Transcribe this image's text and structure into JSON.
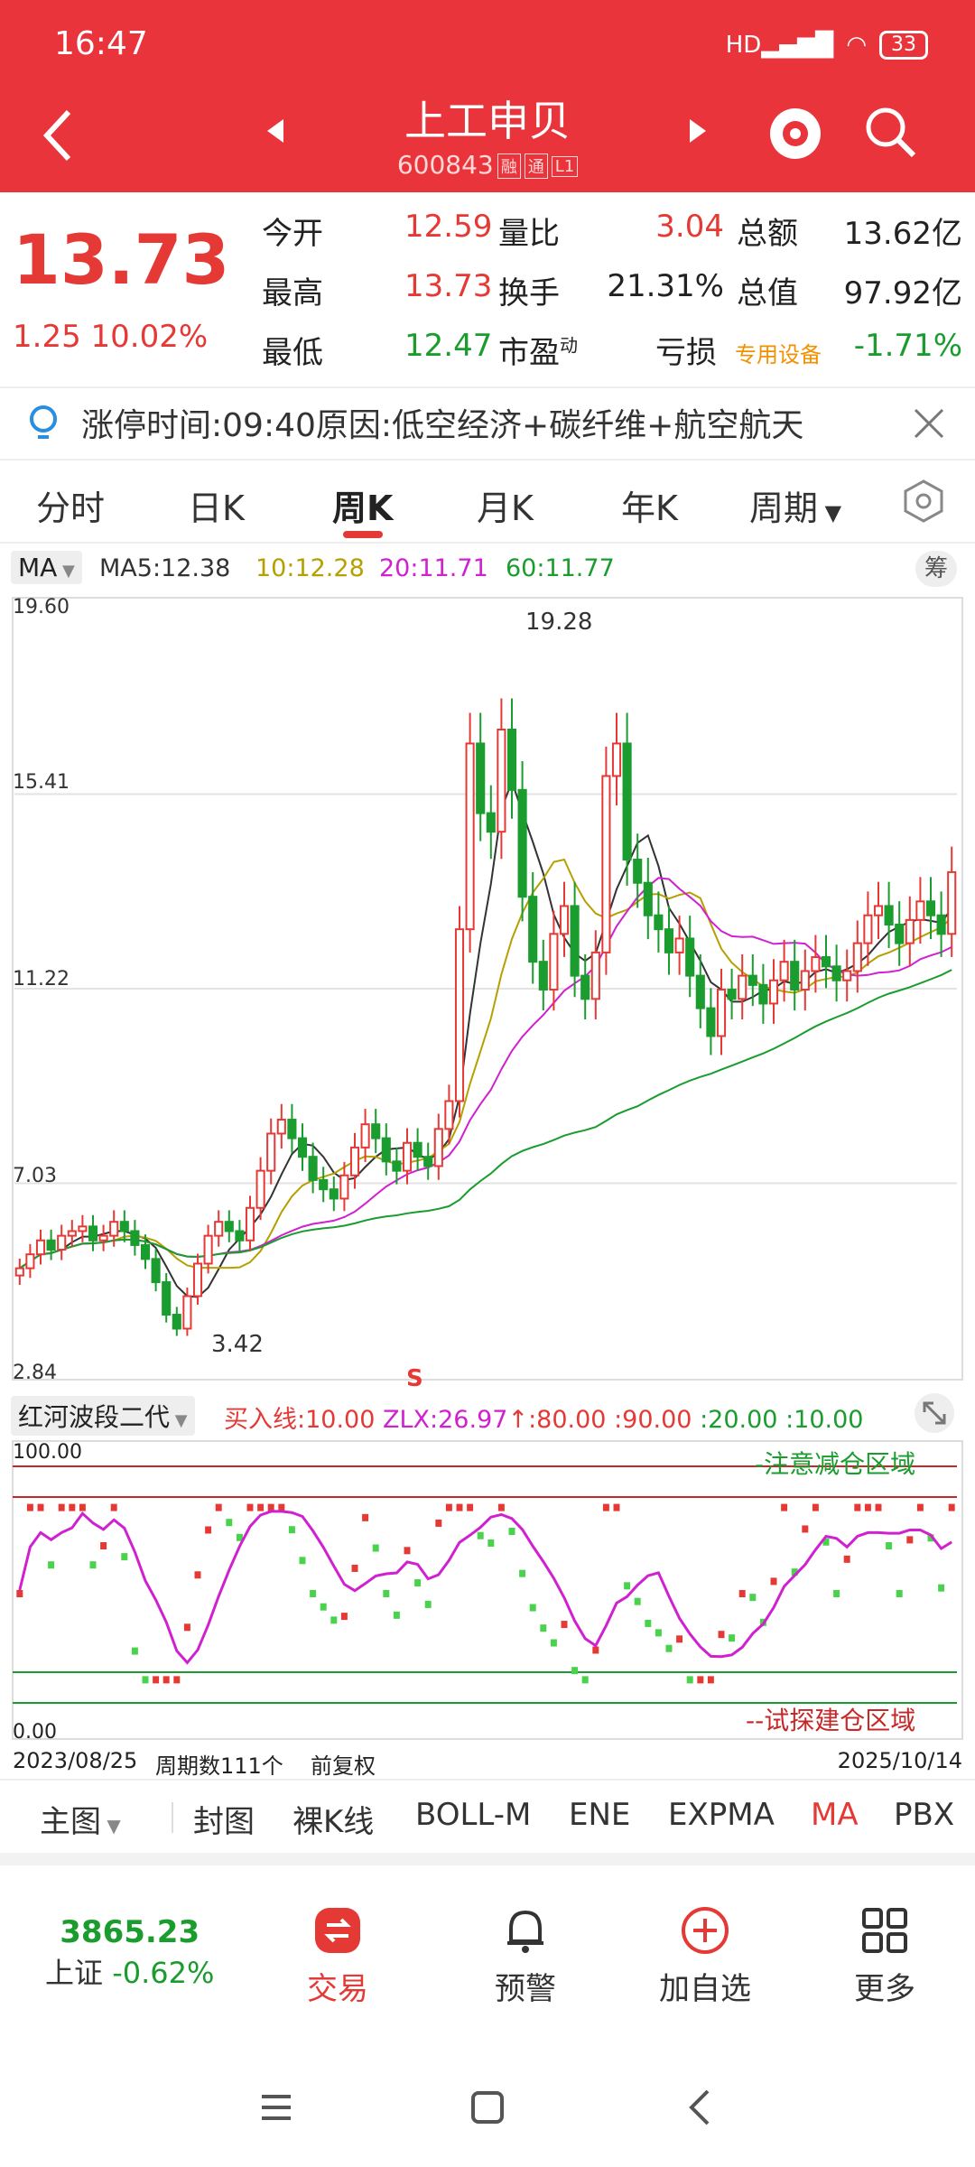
{
  "status_bar": {
    "time": "16:47",
    "battery": "33"
  },
  "header": {
    "title": "上工申贝",
    "code": "600843",
    "tags": [
      "融",
      "通",
      "L1"
    ]
  },
  "quote": {
    "price": "13.73",
    "change": "1.25",
    "change_pct": "10.02%",
    "rows": [
      [
        {
          "label": "今开",
          "value": "12.59",
          "color": "red"
        },
        {
          "label": "量比",
          "value": "3.04",
          "color": "red"
        },
        {
          "label": "总额",
          "value": "13.62亿",
          "color": "black"
        }
      ],
      [
        {
          "label": "最高",
          "value": "13.73",
          "color": "red"
        },
        {
          "label": "换手",
          "value": "21.31%",
          "color": "black"
        },
        {
          "label": "总值",
          "value": "97.92亿",
          "color": "black"
        }
      ],
      [
        {
          "label": "最低",
          "value": "12.47",
          "color": "green"
        },
        {
          "label": "市盈",
          "sup": "动",
          "value": "亏损",
          "color": "black"
        },
        {
          "label": "专用设备",
          "value": "-1.71%",
          "color": "green"
        }
      ]
    ]
  },
  "notice": {
    "text": "涨停时间:09:40原因:低空经济+碳纤维+航空航天"
  },
  "tabs": [
    "分时",
    "日K",
    "周K",
    "月K",
    "年K",
    "周期"
  ],
  "active_tab": "周K",
  "ma_legend": {
    "selector": "MA",
    "items": [
      {
        "label": "MA5:12.38",
        "color": "#333333"
      },
      {
        "label": "10:12.28",
        "color": "#b5a000"
      },
      {
        "label": "20:11.71",
        "color": "#d020d0"
      },
      {
        "label": "60:11.77",
        "color": "#1a9c2e"
      }
    ],
    "chip_btn": "筹"
  },
  "price_axis": [
    "19.60",
    "15.41",
    "11.22",
    "7.03",
    "2.84"
  ],
  "annotations": {
    "high": "19.28",
    "low": "3.42",
    "signal": "S"
  },
  "indicator": {
    "name": "红河波段二代",
    "params": [
      {
        "text": "买入线:10.00",
        "color": "#e53935"
      },
      {
        "text": "ZLX:26.97",
        "color": "#d020d0"
      },
      {
        "text": ":80.00",
        "color": "#e53935"
      },
      {
        "text": ":90.00",
        "color": "#e53935"
      },
      {
        "text": ":20.00",
        "color": "#1a9c2e"
      },
      {
        "text": ":10.00",
        "color": "#1a9c2e"
      }
    ],
    "axis": [
      "100.00",
      "0.00"
    ],
    "upper_zone": "-注意减仓区域",
    "lower_zone": "--试探建仓区域"
  },
  "footer_info": {
    "start": "2023/08/25",
    "count": "周期数111个",
    "adjust": "前复权",
    "end": "2025/10/14"
  },
  "bottom_nav": [
    "主图",
    "封图",
    "裸K线",
    "BOLL-M",
    "ENE",
    "EXPMA",
    "MA",
    "PBX"
  ],
  "bottom_nav_active": "MA",
  "dock": {
    "index_value": "3865.23",
    "index_name": "上证",
    "index_change": "-0.62%",
    "items": [
      "交易",
      "预警",
      "加自选",
      "更多"
    ]
  },
  "chart_data": {
    "type": "candlestick",
    "period": "weekly",
    "ylim": [
      2.84,
      19.6
    ],
    "x_range": [
      "2023/08/25",
      "2025/10/14"
    ],
    "approx_closes": [
      5.2,
      5.5,
      5.8,
      5.6,
      5.9,
      6.0,
      6.1,
      5.8,
      5.9,
      6.2,
      6.0,
      5.7,
      5.4,
      4.9,
      4.2,
      3.9,
      4.6,
      5.3,
      5.9,
      6.2,
      6.0,
      5.8,
      6.5,
      7.3,
      8.1,
      8.4,
      8.0,
      7.6,
      7.1,
      6.9,
      6.7,
      7.2,
      7.8,
      8.3,
      8.0,
      7.5,
      7.3,
      7.9,
      7.6,
      7.4,
      8.2,
      8.8,
      12.5,
      16.5,
      15.0,
      14.6,
      16.8,
      15.5,
      13.2,
      11.8,
      11.2,
      12.4,
      13.0,
      11.5,
      11.0,
      12.0,
      15.8,
      16.5,
      14.0,
      13.5,
      12.8,
      12.5,
      12.0,
      12.3,
      11.5,
      10.8,
      10.2,
      11.2,
      11.0,
      11.5,
      11.3,
      10.9,
      11.4,
      11.8,
      11.2,
      11.6,
      11.9,
      11.7,
      11.4,
      11.6,
      12.2,
      12.8,
      13.0,
      12.6,
      12.2,
      12.7,
      13.1,
      12.8,
      12.4,
      13.73
    ],
    "ma_legend": {
      "MA5": 12.38,
      "MA10": 12.28,
      "MA20": 11.71,
      "MA60": 11.77
    }
  }
}
